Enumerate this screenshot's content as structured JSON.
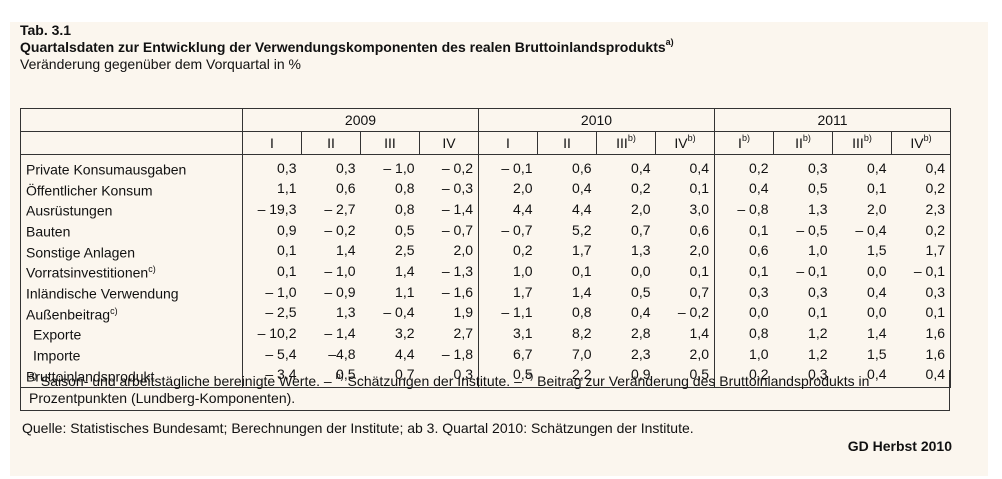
{
  "caption": {
    "tabno": "Tab. 3.1",
    "title": "Quartalsdaten zur Entwicklung der Verwendungskomponenten des realen Bruttoinlandsprodukts",
    "title_sup": "a)",
    "subtitle": "Veränderung gegenüber dem Vorquartal in %"
  },
  "table": {
    "years": [
      "2009",
      "2010",
      "2011"
    ],
    "quarters": [
      {
        "q": "I",
        "sup": ""
      },
      {
        "q": "II",
        "sup": ""
      },
      {
        "q": "III",
        "sup": ""
      },
      {
        "q": "IV",
        "sup": ""
      },
      {
        "q": "I",
        "sup": ""
      },
      {
        "q": "II",
        "sup": ""
      },
      {
        "q": "III",
        "sup": "b)"
      },
      {
        "q": "IV",
        "sup": "b)"
      },
      {
        "q": "I",
        "sup": "b)"
      },
      {
        "q": "II",
        "sup": "b)"
      },
      {
        "q": "III",
        "sup": "b)"
      },
      {
        "q": "IV",
        "sup": "b)"
      }
    ],
    "rows": [
      {
        "label": "Private Konsumausgaben",
        "sup": "",
        "indent": false,
        "values": [
          "0,3",
          "0,3",
          "– 1,0",
          "– 0,2",
          "– 0,1",
          "0,6",
          "0,4",
          "0,4",
          "0,2",
          "0,3",
          "0,4",
          "0,4"
        ]
      },
      {
        "label": "Öffentlicher Konsum",
        "sup": "",
        "indent": false,
        "values": [
          "1,1",
          "0,6",
          "0,8",
          "– 0,3",
          "2,0",
          "0,4",
          "0,2",
          "0,1",
          "0,4",
          "0,5",
          "0,1",
          "0,2"
        ]
      },
      {
        "label": "Ausrüstungen",
        "sup": "",
        "indent": false,
        "values": [
          "– 19,3",
          "– 2,7",
          "0,8",
          "– 1,4",
          "4,4",
          "4,4",
          "2,0",
          "3,0",
          "– 0,8",
          "1,3",
          "2,0",
          "2,3"
        ]
      },
      {
        "label": "Bauten",
        "sup": "",
        "indent": false,
        "values": [
          "0,9",
          "– 0,2",
          "0,5",
          "– 0,7",
          "– 0,7",
          "5,2",
          "0,7",
          "0,6",
          "0,1",
          "– 0,5",
          "– 0,4",
          "0,2"
        ]
      },
      {
        "label": "Sonstige Anlagen",
        "sup": "",
        "indent": false,
        "values": [
          "0,1",
          "1,4",
          "2,5",
          "2,0",
          "0,2",
          "1,7",
          "1,3",
          "2,0",
          "0,6",
          "1,0",
          "1,5",
          "1,7"
        ]
      },
      {
        "label": "Vorratsinvestitionen",
        "sup": "c)",
        "indent": false,
        "values": [
          "0,1",
          "– 1,0",
          "1,4",
          "– 1,3",
          "1,0",
          "0,1",
          "0,0",
          "0,1",
          "0,1",
          "– 0,1",
          "0,0",
          "– 0,1"
        ]
      },
      {
        "label": "Inländische Verwendung",
        "sup": "",
        "indent": false,
        "values": [
          "– 1,0",
          "– 0,9",
          "1,1",
          "– 1,6",
          "1,7",
          "1,4",
          "0,5",
          "0,7",
          "0,3",
          "0,3",
          "0,4",
          "0,3"
        ]
      },
      {
        "label": "Außenbeitrag",
        "sup": "c)",
        "indent": false,
        "values": [
          "– 2,5",
          "1,3",
          "– 0,4",
          "1,9",
          "– 1,1",
          "0,8",
          "0,4",
          "– 0,2",
          "0,0",
          "0,1",
          "0,0",
          "0,1"
        ]
      },
      {
        "label": "Exporte",
        "sup": "",
        "indent": true,
        "values": [
          "– 10,2",
          "– 1,4",
          "3,2",
          "2,7",
          "3,1",
          "8,2",
          "2,8",
          "1,4",
          "0,8",
          "1,2",
          "1,4",
          "1,6"
        ]
      },
      {
        "label": "Importe",
        "sup": "",
        "indent": true,
        "values": [
          "– 5,4",
          "–4,8",
          "4,4",
          "– 1,8",
          "6,7",
          "7,0",
          "2,3",
          "2,0",
          "1,0",
          "1,2",
          "1,5",
          "1,6"
        ]
      },
      {
        "label": "Bruttoinlandsprodukt",
        "sup": "",
        "indent": false,
        "values": [
          "– 3,4",
          "0,5",
          "0,7",
          "0,3",
          "0,5",
          "2,2",
          "0,9",
          "0,5",
          "0,2",
          "0,3",
          "0,4",
          "0,4"
        ]
      }
    ]
  },
  "footnotes": [
    {
      "sup": "a)",
      "text": " Saison- und arbeitstägliche bereinigte Werte. – "
    },
    {
      "sup": "b)",
      "text": " Schätzungen der Institute. – "
    },
    {
      "sup": "c)",
      "text": " Beitrag zur Veränderung des Bruttoinlands­produkts in Prozentpunkten (Lundberg-Komponenten)."
    }
  ],
  "source": "Quelle: Statistisches Bundesamt; Berechnungen der Institute; ab 3. Quartal 2010: Schätzungen der Institute.",
  "credit": "GD Herbst 2010"
}
